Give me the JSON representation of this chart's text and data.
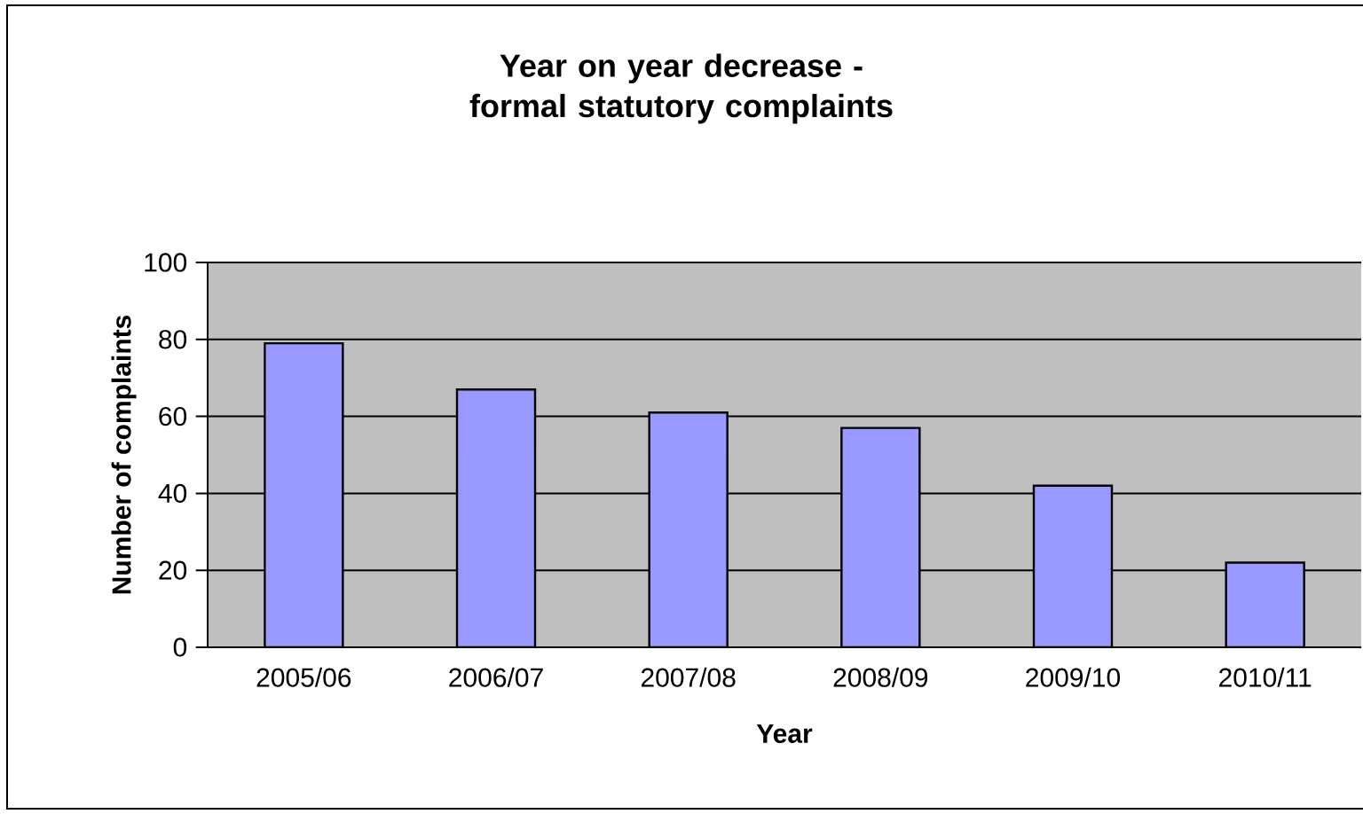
{
  "chart_data": {
    "type": "bar",
    "title": "Year on year decrease - formal statutory complaints",
    "xlabel": "Year",
    "ylabel": "Number of complaints",
    "categories": [
      "2005/06",
      "2006/07",
      "2007/08",
      "2008/09",
      "2009/10",
      "2010/11"
    ],
    "values": [
      79,
      67,
      61,
      57,
      42,
      22
    ],
    "color": "#9999ff",
    "ylim": [
      0,
      100
    ],
    "yticks": [
      0,
      20,
      40,
      60,
      80,
      100
    ],
    "grid": "y"
  }
}
